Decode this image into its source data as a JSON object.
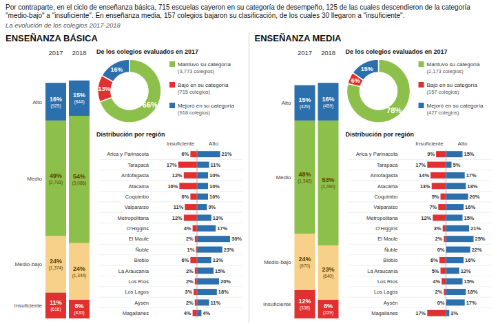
{
  "chart_data": [
    {
      "type": "bar",
      "stacked": true,
      "title": "ENSEÑANZA BÁSICA",
      "annotations": [
        "Por contraparte, en el ciclo de enseñanza básica, 715 escuelas cayeron en su categoría de desempeño, 125 de las cuales descendieron de la categoría \"medio-bajo\" a \"insuficiente\". En enseñanza media, 157 colegios bajaron su clasificación, de los cuales 30 llegaron a \"insuficiente\".",
        "La evolución de los colegios 2017-2018"
      ],
      "categories": [
        "2017",
        "2018"
      ],
      "ylim": [
        0,
        110
      ],
      "tick_labels": "x",
      "data_labels": true,
      "series": [
        {
          "name": "Alto",
          "color": "#2c6fad",
          "values": [
            16,
            15
          ],
          "value_labels": [
            "16%",
            "15%"
          ],
          "counts": [
            925,
            844
          ],
          "count_labels": [
            "(925)",
            "(844)"
          ]
        },
        {
          "name": "Medio",
          "color": "#8dc04a",
          "values": [
            49,
            54
          ],
          "value_labels": [
            "49%",
            "54%"
          ],
          "counts": [
            2793,
            3086
          ],
          "count_labels": [
            "(2,793)",
            "(3,086)"
          ]
        },
        {
          "name": "Medio-bajo",
          "color": "#f7d08a",
          "values": [
            24,
            24
          ],
          "value_labels": [
            "24%",
            "24%"
          ],
          "counts": [
            1374,
            1344
          ],
          "count_labels": [
            "(1,374)",
            "(1,344)"
          ]
        },
        {
          "name": "Insuficiente",
          "color": "#e03030",
          "values": [
            11,
            8
          ],
          "value_labels": [
            "11%",
            "8%"
          ],
          "counts": [
            616,
            430
          ],
          "count_labels": [
            "(616)",
            "(430)"
          ]
        }
      ]
    },
    {
      "type": "pie",
      "title": "De los colegios evaluados en 2017",
      "categories": [
        "Mantuvo su categoría",
        "Bajó en su categoría",
        "Mejoró en su categoría"
      ],
      "values": [
        66,
        13,
        16
      ],
      "value_labels": [
        "66%",
        "13%",
        "16%"
      ],
      "colors": [
        "#8dc04a",
        "#e03030",
        "#2c6fad"
      ],
      "data_labels": true,
      "counts": [
        3773,
        715,
        918
      ],
      "count_labels": [
        "(3,773 colegios)",
        "(715 colegios)",
        "(918 colegios)"
      ]
    },
    {
      "type": "bar",
      "orientation": "horizontal",
      "title": "Distribución por región",
      "categories": [
        "Arica y Parinacota",
        "Tarapacá",
        "Antofagasta",
        "Atacama",
        "Coquimbo",
        "Valparaíso",
        "Metropolitana",
        "O'Higgins",
        "El Maule",
        "Ñuble",
        "Biobío",
        "La Araucanía",
        "Los Ríos",
        "Los Lagos",
        "Aysén",
        "Magallanes"
      ],
      "xlim": [
        0,
        30
      ],
      "tick_labels": "y",
      "data_labels": true,
      "series": [
        {
          "name": "Insuficiente",
          "color": "#e03030",
          "values": [
            6,
            17,
            12,
            16,
            6,
            11,
            12,
            4,
            2,
            1,
            6,
            2,
            2,
            3,
            2,
            4
          ],
          "value_labels": [
            "6%",
            "17%",
            "12%",
            "16%",
            "6%",
            "11%",
            "12%",
            "4%",
            "2%",
            "1%",
            "6%",
            "2%",
            "2%",
            "3%",
            "2%",
            "4%"
          ]
        },
        {
          "name": "Alto",
          "color": "#2c6fad",
          "values": [
            21,
            11,
            10,
            10,
            10,
            9,
            13,
            17,
            30,
            23,
            13,
            15,
            20,
            18,
            11,
            4
          ],
          "value_labels": [
            "21%",
            "11%",
            "10%",
            "10%",
            "10%",
            "9%",
            "13%",
            "17%",
            "30%",
            "23%",
            "13%",
            "15%",
            "20%",
            "18%",
            "11%",
            "4%"
          ]
        }
      ]
    },
    {
      "type": "bar",
      "stacked": true,
      "title": "ENSEÑANZA MEDIA",
      "categories": [
        "2017",
        "2018"
      ],
      "ylim": [
        0,
        110
      ],
      "tick_labels": "x",
      "data_labels": true,
      "series": [
        {
          "name": "Alto",
          "color": "#2c6fad",
          "values": [
            15,
            16
          ],
          "value_labels": [
            "15%",
            "16%"
          ],
          "counts": [
            429,
            459
          ],
          "count_labels": [
            "(429)",
            "(459)"
          ]
        },
        {
          "name": "Medio",
          "color": "#8dc04a",
          "values": [
            48,
            53
          ],
          "value_labels": [
            "48%",
            "53%"
          ],
          "counts": [
            1342,
            1490
          ],
          "count_labels": [
            "(1,342)",
            "(1,490)"
          ]
        },
        {
          "name": "Medio-bajo",
          "color": "#f7d08a",
          "values": [
            24,
            23
          ],
          "value_labels": [
            "24%",
            "23%"
          ],
          "counts": [
            670,
            640
          ],
          "count_labels": [
            "(670)",
            "(640)"
          ]
        },
        {
          "name": "Insuficiente",
          "color": "#e03030",
          "values": [
            12,
            8
          ],
          "value_labels": [
            "12%",
            "8%"
          ],
          "counts": [
            338,
            229
          ],
          "count_labels": [
            "(338)",
            "(229)"
          ]
        }
      ]
    },
    {
      "type": "pie",
      "title": "De los colegios evaluados en 2017",
      "categories": [
        "Mantuvo su categoría",
        "Bajó en su categoría",
        "Mejoró en su categoría"
      ],
      "values": [
        78,
        6,
        15
      ],
      "value_labels": [
        "78%",
        "6%",
        "15%"
      ],
      "colors": [
        "#8dc04a",
        "#e03030",
        "#2c6fad"
      ],
      "data_labels": true,
      "counts": [
        2173,
        157,
        427
      ],
      "count_labels": [
        "(2,173 colegios)",
        "(157 colegios)",
        "(427 colegios)"
      ]
    },
    {
      "type": "bar",
      "orientation": "horizontal",
      "title": "Distribución por región",
      "categories": [
        "Arica y Parinacota",
        "Tarapacá",
        "Antofagasta",
        "Atacama",
        "Coquimbo",
        "Valparaíso",
        "Metropolitana",
        "O'Higgins",
        "El Maule",
        "Ñuble",
        "Biobío",
        "La Araucanía",
        "Los Ríos",
        "Los Lagos",
        "Aysén",
        "Magallanes"
      ],
      "xlim": [
        0,
        30
      ],
      "tick_labels": "y",
      "data_labels": true,
      "series": [
        {
          "name": "Insuficiente",
          "color": "#e03030",
          "values": [
            9,
            17,
            14,
            13,
            5,
            7,
            12,
            3,
            2,
            0,
            6,
            5,
            4,
            2,
            0,
            17
          ],
          "value_labels": [
            "9%",
            "17%",
            "14%",
            "13%",
            "5%",
            "7%",
            "12%",
            "3%",
            "2%",
            "0%",
            "6%",
            "5%",
            "4%",
            "2%",
            "0%",
            "17%"
          ]
        },
        {
          "name": "Alto",
          "color": "#2c6fad",
          "values": [
            15,
            5,
            17,
            18,
            20,
            16,
            15,
            21,
            25,
            22,
            16,
            12,
            15,
            18,
            17,
            3
          ],
          "value_labels": [
            "15%",
            "5%",
            "17%",
            "18%",
            "20%",
            "16%",
            "15%",
            "21%",
            "25%",
            "22%",
            "16%",
            "12%",
            "15%",
            "18%",
            "17%",
            "3%"
          ]
        }
      ]
    }
  ]
}
